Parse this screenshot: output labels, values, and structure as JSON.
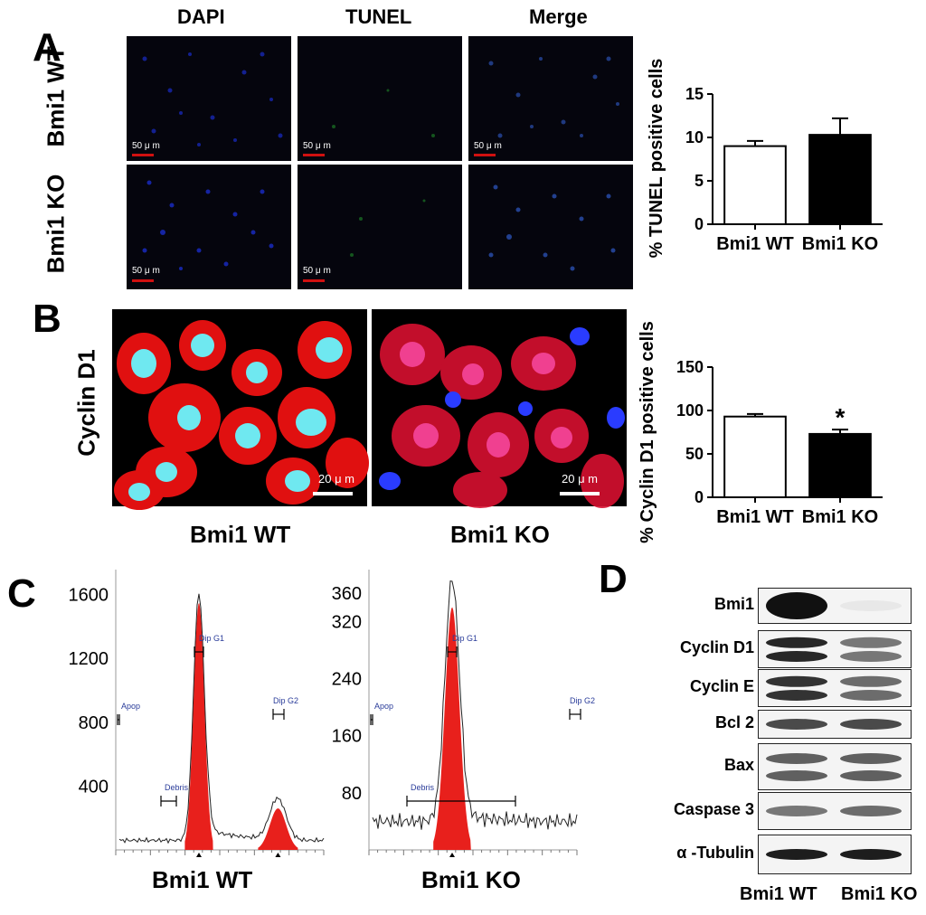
{
  "panels": {
    "a": "A",
    "b": "B",
    "c": "C",
    "d": "D"
  },
  "panelA": {
    "col_headers": [
      "DAPI",
      "TUNEL",
      "Merge"
    ],
    "row_labels": [
      "Bmi1 WT",
      "Bmi1 KO"
    ],
    "scale_label": "50 μ m",
    "channel_colors": {
      "DAPI": "#1a2cc8",
      "TUNEL": "#1f8a2a",
      "Merge": "#2a4fb0"
    }
  },
  "panelB": {
    "row_label": "Cyclin D1",
    "image_captions": [
      "Bmi1 WT",
      "Bmi1 KO"
    ],
    "scale_label": "20 μ m",
    "stain_colors": {
      "cyclin": "#e01010",
      "nucleus": "#6fe8f0",
      "nucleus_ko": "#2a3cff"
    }
  },
  "chart_data": [
    {
      "type": "bar",
      "ylabel": "% TUNEL positive cells",
      "categories": [
        "Bmi1 WT",
        "Bmi1 KO"
      ],
      "values": [
        9.0,
        10.3
      ],
      "errors": [
        0.6,
        1.9
      ],
      "fills": [
        "#ffffff",
        "#000000"
      ],
      "ylim": [
        0,
        15
      ],
      "yticks": [
        0,
        5,
        10,
        15
      ]
    },
    {
      "type": "bar",
      "ylabel": "% Cyclin D1 positive cells",
      "categories": [
        "Bmi1 WT",
        "Bmi1 KO"
      ],
      "values": [
        93,
        73
      ],
      "errors": [
        3,
        5
      ],
      "fills": [
        "#ffffff",
        "#000000"
      ],
      "annotation": "*",
      "ylim": [
        0,
        150
      ],
      "yticks": [
        0,
        50,
        100,
        150
      ]
    },
    {
      "type": "area",
      "caption": "Bmi1 WT",
      "yticks": [
        "1600",
        "1200",
        "800",
        "400"
      ],
      "ylim": [
        0,
        1700
      ],
      "gate_labels": [
        "Apop",
        "Debris",
        "Dip G1",
        "Dip G2"
      ],
      "peaks": [
        {
          "name": "Dip G1",
          "height": 1550
        },
        {
          "name": "Dip G2",
          "height": 260
        }
      ]
    },
    {
      "type": "area",
      "caption": "Bmi1 KO",
      "yticks": [
        "360",
        "320",
        "240",
        "160",
        "80"
      ],
      "ylim": [
        0,
        380
      ],
      "gate_labels": [
        "Apop",
        "Debris",
        "Dip G1",
        "Dip G2"
      ],
      "peaks": [
        {
          "name": "Dip G1",
          "height": 340
        }
      ]
    }
  ],
  "panelD": {
    "rows": [
      "Bmi1",
      "Cyclin D1",
      "Cyclin E",
      "Bcl 2",
      "Bax",
      "Caspase 3",
      "α -Tubulin"
    ],
    "lane_labels": [
      "Bmi1 WT",
      "Bmi1 KO"
    ]
  }
}
